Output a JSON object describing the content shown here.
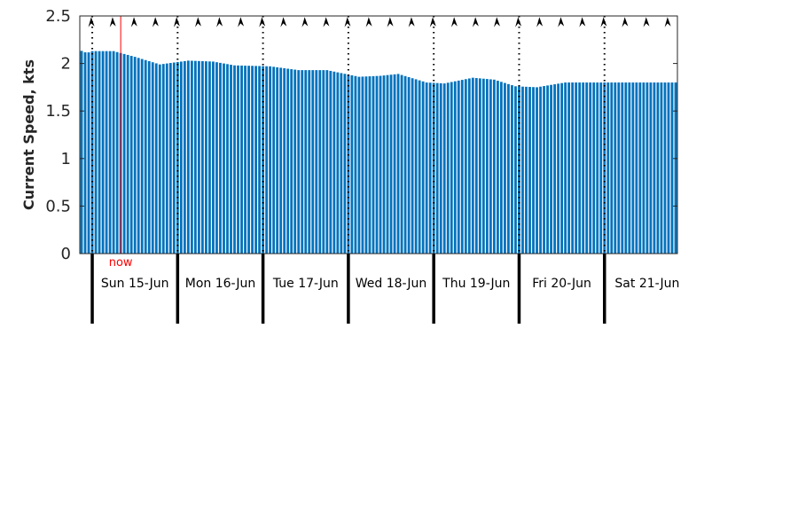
{
  "chart_data": {
    "type": "bar",
    "ylabel": "Current Speed, kts",
    "ylim": [
      0,
      2.5
    ],
    "yticks": [
      "0",
      "0.5",
      "1",
      "1.5",
      "2",
      "2.5"
    ],
    "grid": false,
    "x_start": "2025-06-14T20:30",
    "x_end": "2025-06-21T20:30",
    "bar_count": 168,
    "now": {
      "label": "now",
      "time": "2025-06-15T08:00"
    },
    "day_labels": [
      "Sun 15-Jun",
      "Mon 16-Jun",
      "Tue 17-Jun",
      "Wed 18-Jun",
      "Thu 19-Jun",
      "Fri 20-Jun",
      "Sat 21-Jun"
    ],
    "day_boundaries": [
      "2025-06-15T00:00",
      "2025-06-16T00:00",
      "2025-06-17T00:00",
      "2025-06-18T00:00",
      "2025-06-19T00:00",
      "2025-06-20T00:00",
      "2025-06-21T00:00"
    ],
    "profile": [
      {
        "time": "2025-06-14T20:30",
        "value": 2.14
      },
      {
        "time": "2025-06-14T22:30",
        "value": 2.11
      },
      {
        "time": "2025-06-15T00:00",
        "value": 2.13
      },
      {
        "time": "2025-06-15T06:00",
        "value": 2.13
      },
      {
        "time": "2025-06-15T12:00",
        "value": 2.07
      },
      {
        "time": "2025-06-15T19:00",
        "value": 1.99
      },
      {
        "time": "2025-06-16T03:00",
        "value": 2.03
      },
      {
        "time": "2025-06-16T10:00",
        "value": 2.02
      },
      {
        "time": "2025-06-16T16:00",
        "value": 1.98
      },
      {
        "time": "2025-06-17T02:00",
        "value": 1.97
      },
      {
        "time": "2025-06-17T10:00",
        "value": 1.93
      },
      {
        "time": "2025-06-17T18:00",
        "value": 1.93
      },
      {
        "time": "2025-06-18T03:00",
        "value": 1.86
      },
      {
        "time": "2025-06-18T09:00",
        "value": 1.87
      },
      {
        "time": "2025-06-18T14:00",
        "value": 1.89
      },
      {
        "time": "2025-06-18T22:00",
        "value": 1.8
      },
      {
        "time": "2025-06-19T03:00",
        "value": 1.79
      },
      {
        "time": "2025-06-19T11:00",
        "value": 1.85
      },
      {
        "time": "2025-06-19T17:00",
        "value": 1.83
      },
      {
        "time": "2025-06-19T23:00",
        "value": 1.76
      },
      {
        "time": "2025-06-20T05:00",
        "value": 1.75
      },
      {
        "time": "2025-06-20T13:00",
        "value": 1.8
      }
    ],
    "direction_arrows_count": 28,
    "colors": {
      "bar": "#0072bd",
      "now": "#ff0000",
      "axis": "#262626",
      "separator": "#000000",
      "arrow": "#000000"
    }
  }
}
